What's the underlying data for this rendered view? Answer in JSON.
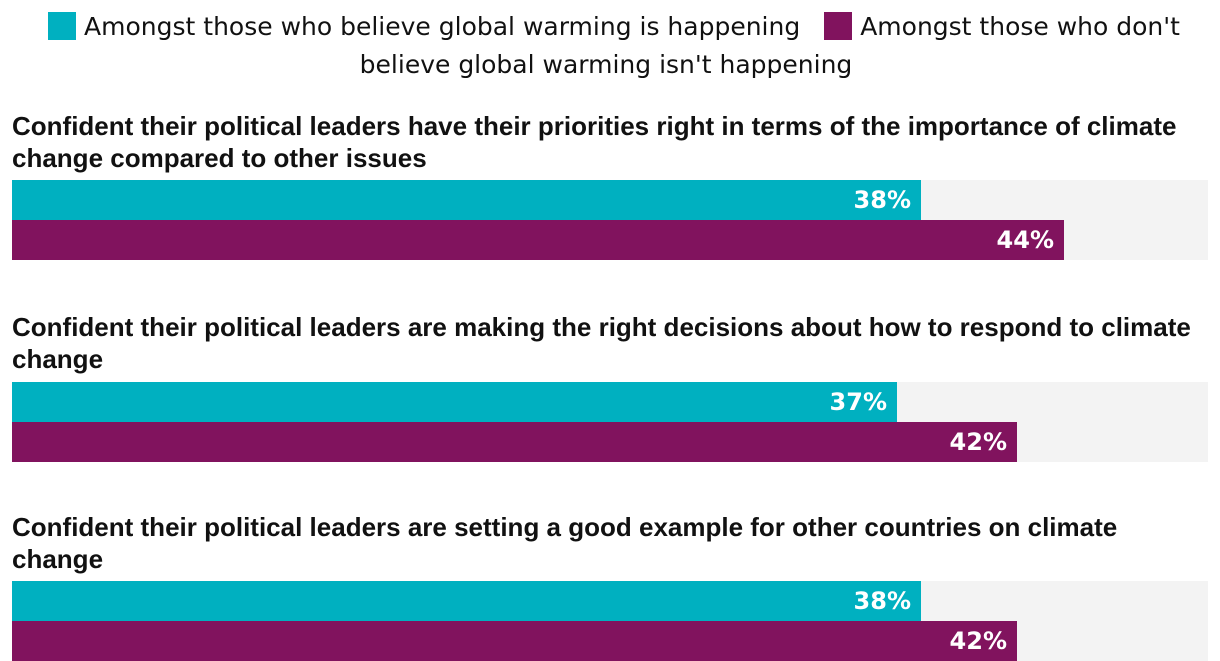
{
  "chart_data": {
    "type": "bar",
    "orientation": "horizontal",
    "xlim": [
      0,
      50
    ],
    "categories": [
      "Confident their political leaders have their priorities right in terms of the importance of climate change compared to other issues",
      "Confident their political leaders are making the right decisions about how to respond to climate change",
      "Confident their political leaders are setting a good example for other countries on climate change"
    ],
    "series": [
      {
        "name": "Amongst those who believe global warming is happening",
        "color": "#00b0c0",
        "values": [
          38,
          37,
          38
        ],
        "labels": [
          "38%",
          "37%",
          "38%"
        ]
      },
      {
        "name": "Amongst those who don't believe global warming isn't happening",
        "color": "#81135e",
        "values": [
          44,
          42,
          42
        ],
        "labels": [
          "44%",
          "42%",
          "42%"
        ]
      }
    ],
    "legend_position": "top-center"
  }
}
